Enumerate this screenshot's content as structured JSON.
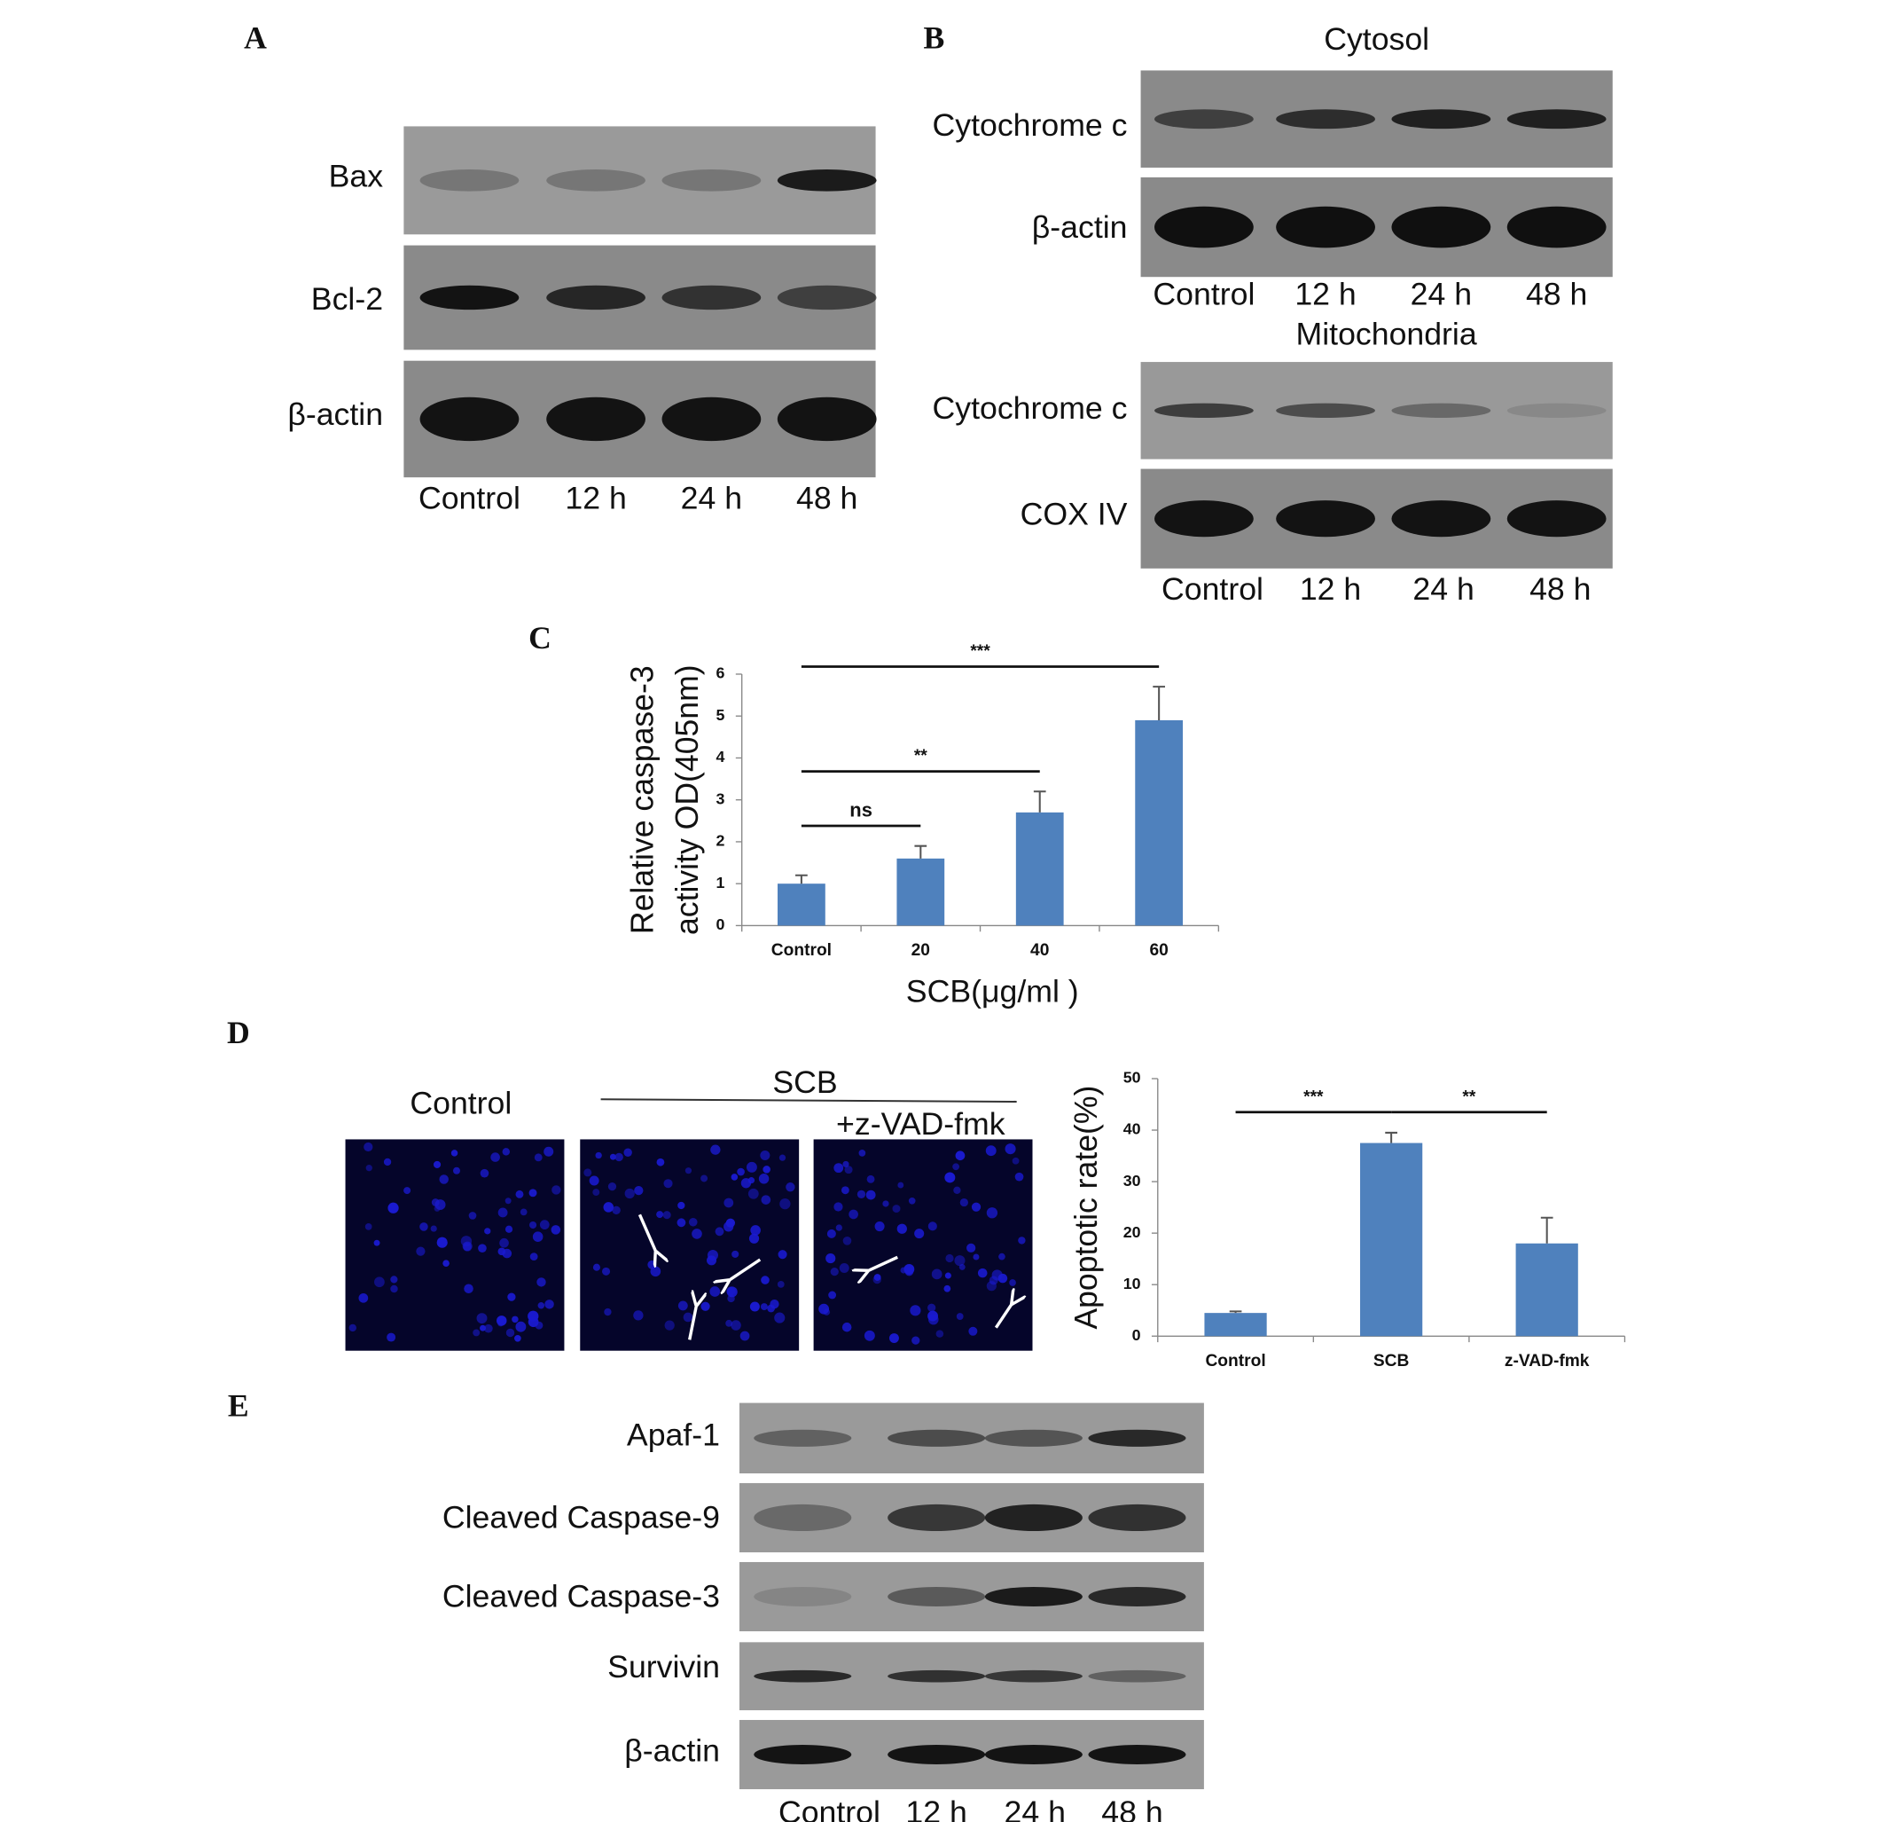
{
  "panels": {
    "A": {
      "letter": "A",
      "rows": [
        "Bax",
        "Bcl-2",
        "β-actin"
      ],
      "lanes": [
        "Control",
        "12 h",
        "24 h",
        "48 h"
      ]
    },
    "B": {
      "letter": "B",
      "cytosol": {
        "title": "Cytosol",
        "rows": [
          "Cytochrome c",
          "β-actin"
        ],
        "lanes": [
          "Control",
          "12 h",
          "24 h",
          "48 h"
        ]
      },
      "mitochondria": {
        "title": "Mitochondria",
        "rows": [
          "Cytochrome c",
          "COX IV"
        ],
        "lanes": [
          "Control",
          "12 h",
          "24 h",
          "48 h"
        ]
      }
    },
    "C": {
      "letter": "C"
    },
    "D": {
      "letter": "D",
      "image_labels": [
        "Control",
        "SCB",
        "+z-VAD-fmk"
      ]
    },
    "E": {
      "letter": "E",
      "rows": [
        "Apaf-1",
        "Cleaved Caspase-9",
        "Cleaved Caspase-3",
        "Survivin",
        "β-actin"
      ],
      "lanes": [
        "Control",
        "12 h",
        "24 h",
        "48 h"
      ]
    }
  },
  "chart_data": [
    {
      "type": "bar",
      "categories": [
        "Control",
        "20",
        "40",
        "60"
      ],
      "values": [
        1.0,
        1.6,
        2.7,
        4.9
      ],
      "errors": [
        0.2,
        0.3,
        0.5,
        0.8
      ],
      "color": "#4f81bd",
      "ylim": [
        0,
        6
      ],
      "yticks": [
        0,
        1,
        2,
        3,
        4,
        5,
        6
      ],
      "y_label": [
        "Relative caspase-3",
        "activity OD(405nm)"
      ],
      "x_label": "SCB(μg/ml )",
      "annotations": [
        {
          "label": "ns",
          "from": "Control",
          "to": "20"
        },
        {
          "label": "**",
          "from": "Control",
          "to": "40"
        },
        {
          "label": "***",
          "from": "Control",
          "to": "60"
        }
      ]
    },
    {
      "type": "bar",
      "categories": [
        "Control",
        "SCB",
        "z-VAD-fmk"
      ],
      "values": [
        4.5,
        37.5,
        18
      ],
      "errors": [
        0.3,
        2,
        5
      ],
      "color": "#4f81bd",
      "ylim": [
        0,
        50
      ],
      "yticks": [
        0,
        10,
        20,
        30,
        40,
        50
      ],
      "y_label": [
        "Apoptotic rate(%)"
      ],
      "annotations": [
        {
          "label": "***",
          "from": "Control",
          "to": "SCB"
        },
        {
          "label": "**",
          "from": "SCB",
          "to": "z-VAD-fmk"
        }
      ]
    }
  ]
}
